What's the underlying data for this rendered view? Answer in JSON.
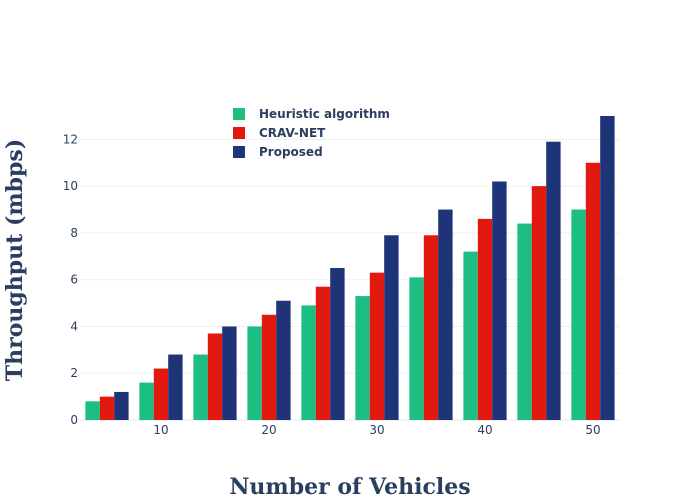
{
  "chart_data": {
    "type": "bar",
    "xlabel": "Number of Vehicles",
    "ylabel": "Throughput (mbps)",
    "x": [
      5,
      10,
      15,
      20,
      25,
      30,
      35,
      40,
      45,
      50
    ],
    "xticks": [
      10,
      20,
      30,
      40,
      50
    ],
    "yticks": [
      0,
      2,
      4,
      6,
      8,
      10,
      12
    ],
    "xlim": [
      2.5,
      52.5
    ],
    "ylim": [
      0,
      13
    ],
    "grid": true,
    "legend_position": "top-left",
    "series": [
      {
        "name": "Heuristic algorithm",
        "color": "#1cbe82",
        "values": [
          0.8,
          1.6,
          2.8,
          4.0,
          4.9,
          5.3,
          6.1,
          7.2,
          8.4,
          9.0
        ]
      },
      {
        "name": "CRAV-NET",
        "color": "#e2190f",
        "values": [
          1.0,
          2.2,
          3.7,
          4.5,
          5.7,
          6.3,
          7.9,
          8.6,
          10.0,
          11.0
        ]
      },
      {
        "name": "Proposed",
        "color": "#1f3379",
        "values": [
          1.2,
          2.8,
          4.0,
          5.1,
          6.5,
          7.9,
          9.0,
          10.2,
          11.9,
          13.0
        ]
      }
    ]
  }
}
